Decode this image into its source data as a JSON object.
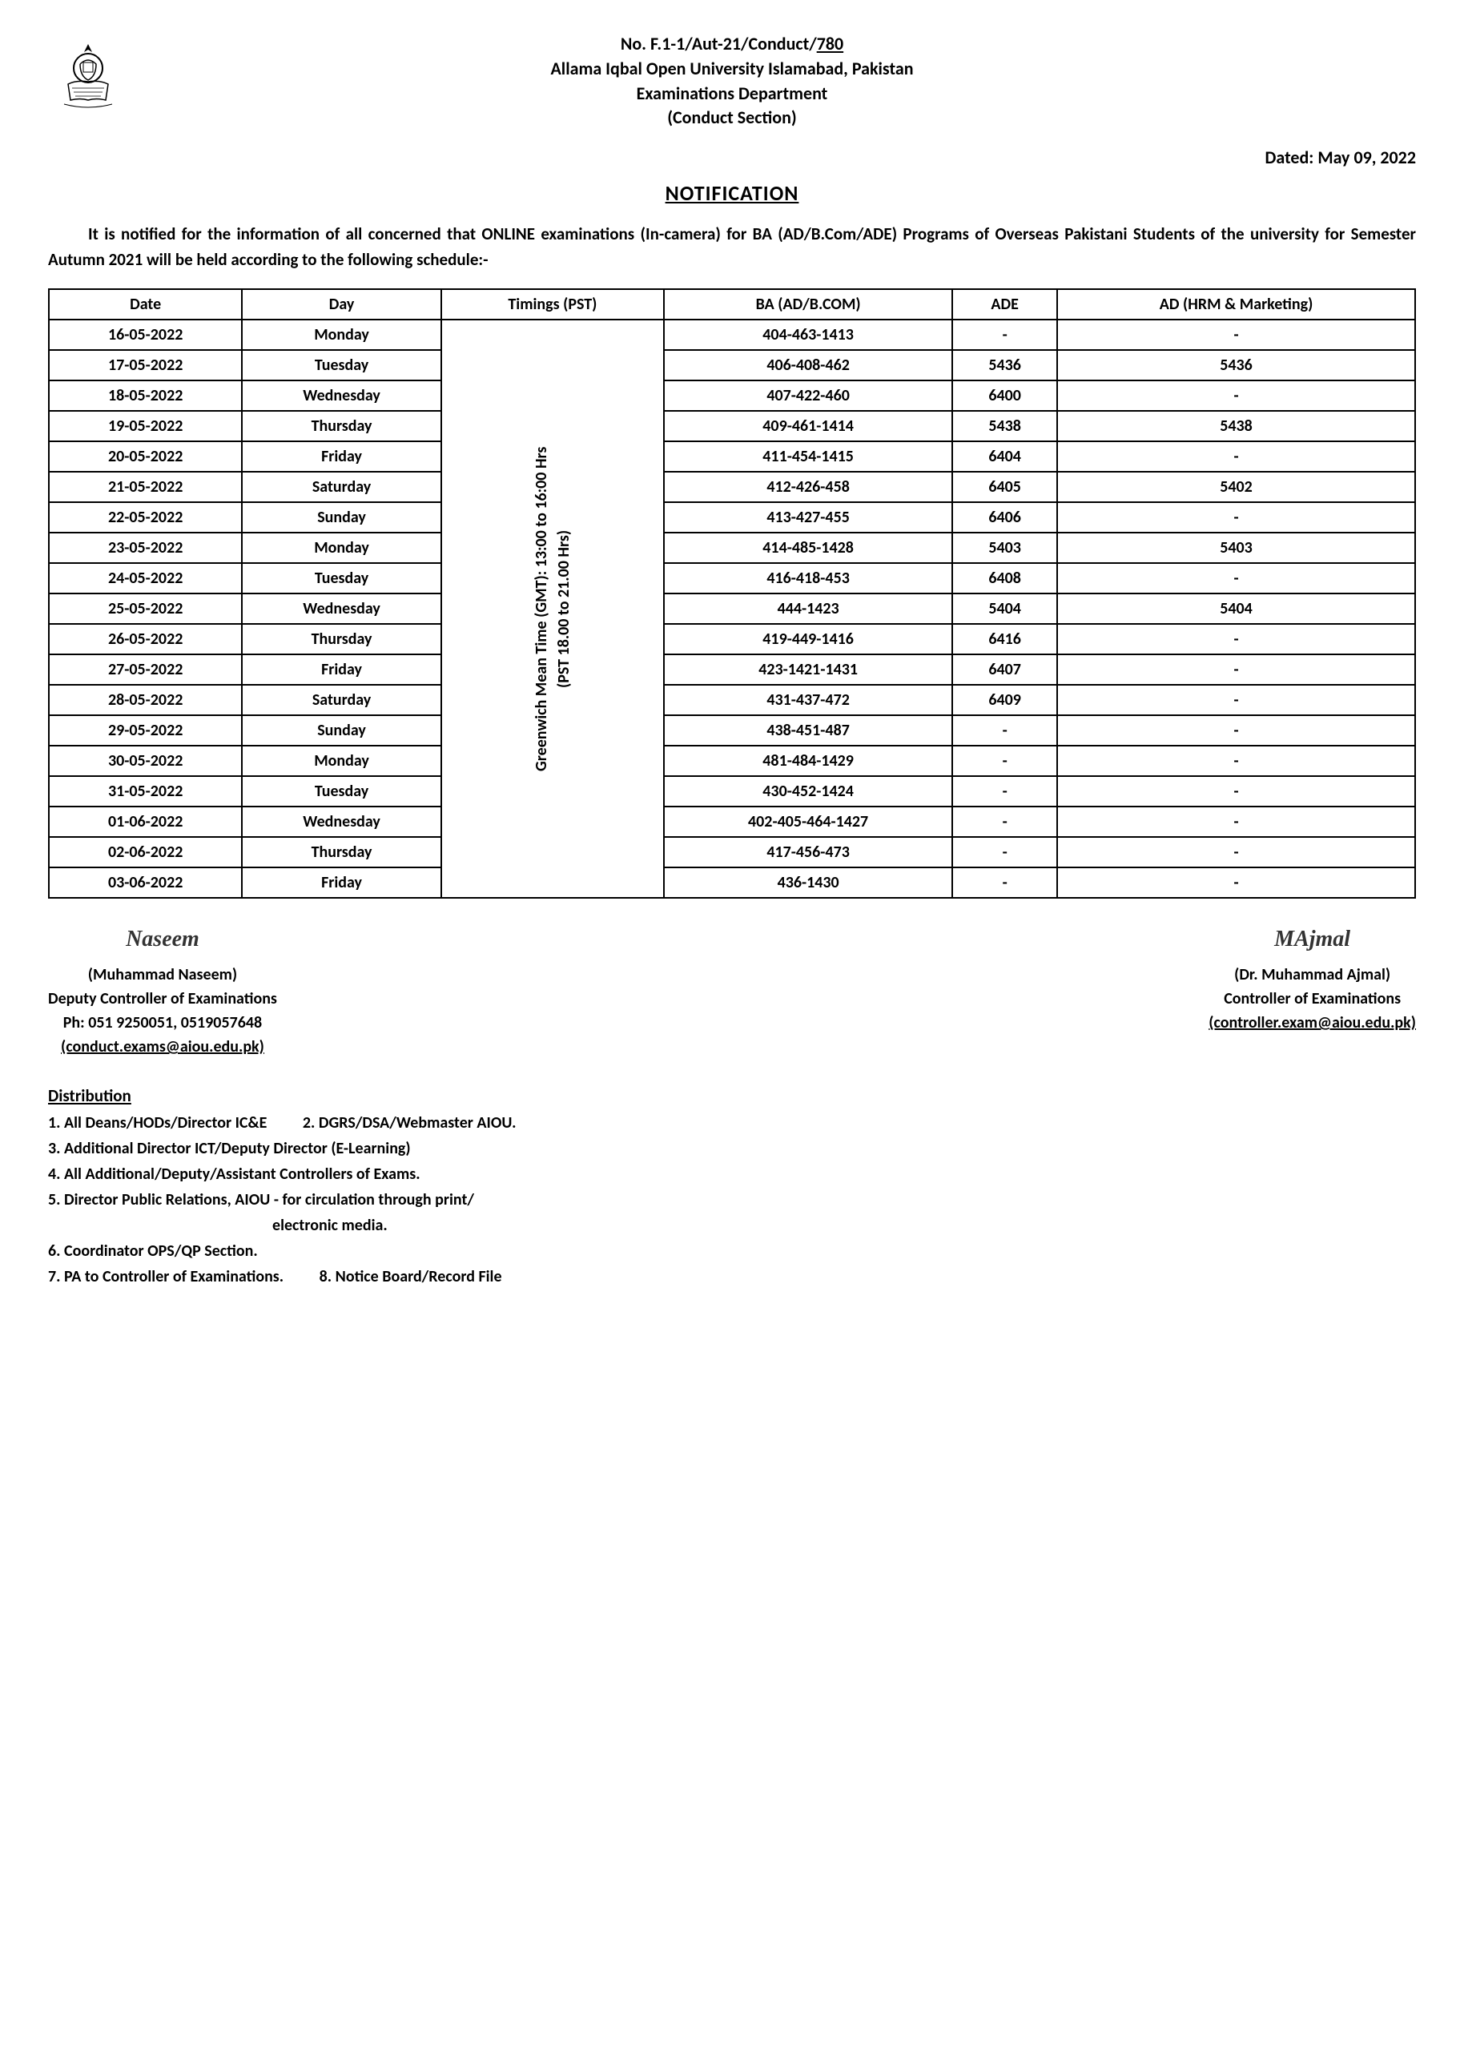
{
  "header": {
    "ref_prefix": "No. F.1-1/Aut-21/Conduct/",
    "ref_number": "780",
    "org_line1": "Allama Iqbal Open University Islamabad, Pakistan",
    "org_line2": "Examinations Department",
    "org_line3": "(Conduct Section)",
    "date": "Dated: May 09, 2022"
  },
  "title": "NOTIFICATION",
  "intro": "It is notified for the information of all concerned that ONLINE examinations (In-camera) for BA (AD/B.Com/ADE) Programs of Overseas Pakistani Students of the university for Semester Autumn 2021 will be held according to the following schedule:-",
  "table": {
    "columns": [
      "Date",
      "Day",
      "Timings (PST)",
      "BA (AD/B.COM)",
      "ADE",
      "AD (HRM & Marketing)"
    ],
    "timings_text": "Greenwich Mean Time (GMT): 13:00 to 16:00 Hrs\n(PST 18.00 to 21.00 Hrs)",
    "rows": [
      {
        "date": "16-05-2022",
        "day": "Monday",
        "ba": "404-463-1413",
        "ade": "-",
        "adhrm": "-"
      },
      {
        "date": "17-05-2022",
        "day": "Tuesday",
        "ba": "406-408-462",
        "ade": "5436",
        "adhrm": "5436"
      },
      {
        "date": "18-05-2022",
        "day": "Wednesday",
        "ba": "407-422-460",
        "ade": "6400",
        "adhrm": "-"
      },
      {
        "date": "19-05-2022",
        "day": "Thursday",
        "ba": "409-461-1414",
        "ade": "5438",
        "adhrm": "5438"
      },
      {
        "date": "20-05-2022",
        "day": "Friday",
        "ba": "411-454-1415",
        "ade": "6404",
        "adhrm": "-"
      },
      {
        "date": "21-05-2022",
        "day": "Saturday",
        "ba": "412-426-458",
        "ade": "6405",
        "adhrm": "5402"
      },
      {
        "date": "22-05-2022",
        "day": "Sunday",
        "ba": "413-427-455",
        "ade": "6406",
        "adhrm": "-"
      },
      {
        "date": "23-05-2022",
        "day": "Monday",
        "ba": "414-485-1428",
        "ade": "5403",
        "adhrm": "5403"
      },
      {
        "date": "24-05-2022",
        "day": "Tuesday",
        "ba": "416-418-453",
        "ade": "6408",
        "adhrm": "-"
      },
      {
        "date": "25-05-2022",
        "day": "Wednesday",
        "ba": "444-1423",
        "ade": "5404",
        "adhrm": "5404"
      },
      {
        "date": "26-05-2022",
        "day": "Thursday",
        "ba": "419-449-1416",
        "ade": "6416",
        "adhrm": "-"
      },
      {
        "date": "27-05-2022",
        "day": "Friday",
        "ba": "423-1421-1431",
        "ade": "6407",
        "adhrm": "-"
      },
      {
        "date": "28-05-2022",
        "day": "Saturday",
        "ba": "431-437-472",
        "ade": "6409",
        "adhrm": "-"
      },
      {
        "date": "29-05-2022",
        "day": "Sunday",
        "ba": "438-451-487",
        "ade": "-",
        "adhrm": "-"
      },
      {
        "date": "30-05-2022",
        "day": "Monday",
        "ba": "481-484-1429",
        "ade": "-",
        "adhrm": "-"
      },
      {
        "date": "31-05-2022",
        "day": "Tuesday",
        "ba": "430-452-1424",
        "ade": "-",
        "adhrm": "-"
      },
      {
        "date": "01-06-2022",
        "day": "Wednesday",
        "ba": "402-405-464-1427",
        "ade": "-",
        "adhrm": "-"
      },
      {
        "date": "02-06-2022",
        "day": "Thursday",
        "ba": "417-456-473",
        "ade": "-",
        "adhrm": "-"
      },
      {
        "date": "03-06-2022",
        "day": "Friday",
        "ba": "436-1430",
        "ade": "-",
        "adhrm": "-"
      }
    ]
  },
  "sig_left": {
    "name": "(Muhammad Naseem)",
    "title": "Deputy Controller of Examinations",
    "phone": "Ph: 051 9250051, 0519057648",
    "email": "(conduct.exams@aiou.edu.pk)"
  },
  "sig_right": {
    "name": "(Dr. Muhammad Ajmal)",
    "title": "Controller of Examinations",
    "email": "(controller.exam@aiou.edu.pk)"
  },
  "distribution": {
    "title": "Distribution",
    "items": [
      "1. All Deans/HODs/Director IC&E",
      "2. DGRS/DSA/Webmaster AIOU.",
      "3. Additional Director ICT/Deputy Director (E-Learning)",
      "4. All Additional/Deputy/Assistant Controllers of Exams.",
      "5. Director Public Relations, AIOU - for circulation through print/",
      "electronic media.",
      "6. Coordinator OPS/QP Section.",
      "7. PA to Controller of Examinations.",
      "8. Notice Board/Record File"
    ]
  }
}
